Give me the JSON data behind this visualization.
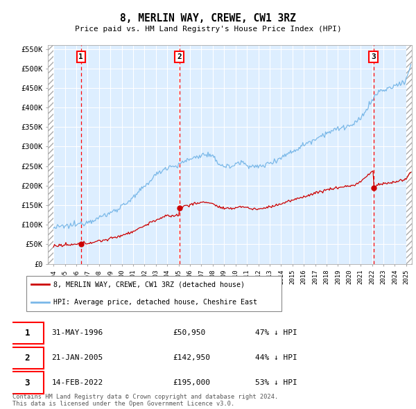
{
  "title": "8, MERLIN WAY, CREWE, CW1 3RZ",
  "subtitle": "Price paid vs. HM Land Registry's House Price Index (HPI)",
  "hpi_color": "#7ab8e8",
  "price_color": "#cc0000",
  "plot_bg": "#ddeeff",
  "ylim": [
    0,
    560000
  ],
  "yticks": [
    0,
    50000,
    100000,
    150000,
    200000,
    250000,
    300000,
    350000,
    400000,
    450000,
    500000,
    550000
  ],
  "ytick_labels": [
    "£0",
    "£50K",
    "£100K",
    "£150K",
    "£200K",
    "£250K",
    "£300K",
    "£350K",
    "£400K",
    "£450K",
    "£500K",
    "£550K"
  ],
  "sale_dates_num": [
    1996.417,
    2005.054,
    2022.125
  ],
  "sale_prices": [
    50950,
    142950,
    195000
  ],
  "sale_labels": [
    "1",
    "2",
    "3"
  ],
  "sale_info": [
    {
      "label": "1",
      "date": "31-MAY-1996",
      "price": "£50,950",
      "pct": "47% ↓ HPI"
    },
    {
      "label": "2",
      "date": "21-JAN-2005",
      "price": "£142,950",
      "pct": "44% ↓ HPI"
    },
    {
      "label": "3",
      "date": "14-FEB-2022",
      "price": "£195,000",
      "pct": "53% ↓ HPI"
    }
  ],
  "legend_line1": "8, MERLIN WAY, CREWE, CW1 3RZ (detached house)",
  "legend_line2": "HPI: Average price, detached house, Cheshire East",
  "footnote": "Contains HM Land Registry data © Crown copyright and database right 2024.\nThis data is licensed under the Open Government Licence v3.0.",
  "xlim_start": 1993.5,
  "xlim_end": 2025.5,
  "hpi_segments": [
    [
      1994.0,
      92000
    ],
    [
      1995.0,
      96000
    ],
    [
      1996.0,
      100000
    ],
    [
      1997.0,
      108000
    ],
    [
      1998.0,
      118000
    ],
    [
      1999.0,
      130000
    ],
    [
      2000.0,
      148000
    ],
    [
      2001.0,
      168000
    ],
    [
      2002.0,
      198000
    ],
    [
      2003.0,
      228000
    ],
    [
      2004.0,
      248000
    ],
    [
      2005.0,
      252000
    ],
    [
      2005.5,
      262000
    ],
    [
      2006.0,
      268000
    ],
    [
      2007.0,
      278000
    ],
    [
      2007.5,
      280000
    ],
    [
      2008.0,
      272000
    ],
    [
      2008.5,
      258000
    ],
    [
      2009.0,
      250000
    ],
    [
      2009.5,
      248000
    ],
    [
      2010.0,
      255000
    ],
    [
      2010.5,
      260000
    ],
    [
      2011.0,
      255000
    ],
    [
      2011.5,
      248000
    ],
    [
      2012.0,
      248000
    ],
    [
      2012.5,
      252000
    ],
    [
      2013.0,
      258000
    ],
    [
      2013.5,
      265000
    ],
    [
      2014.0,
      272000
    ],
    [
      2014.5,
      280000
    ],
    [
      2015.0,
      288000
    ],
    [
      2015.5,
      295000
    ],
    [
      2016.0,
      305000
    ],
    [
      2016.5,
      312000
    ],
    [
      2017.0,
      320000
    ],
    [
      2017.5,
      328000
    ],
    [
      2018.0,
      335000
    ],
    [
      2018.5,
      340000
    ],
    [
      2019.0,
      345000
    ],
    [
      2019.5,
      350000
    ],
    [
      2020.0,
      352000
    ],
    [
      2020.5,
      358000
    ],
    [
      2021.0,
      372000
    ],
    [
      2021.5,
      395000
    ],
    [
      2022.0,
      418000
    ],
    [
      2022.5,
      438000
    ],
    [
      2023.0,
      445000
    ],
    [
      2023.5,
      448000
    ],
    [
      2024.0,
      455000
    ],
    [
      2024.5,
      462000
    ],
    [
      2025.0,
      470000
    ],
    [
      2025.4,
      510000
    ]
  ]
}
